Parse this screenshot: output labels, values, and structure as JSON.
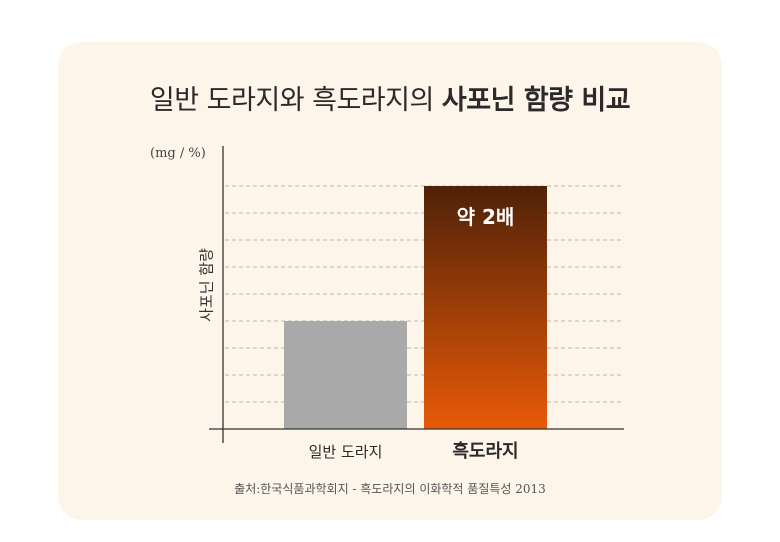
{
  "title": {
    "light": "일반 도라지와 흑도라지의 ",
    "bold": "사포닌 함량 비교"
  },
  "chart_data": {
    "type": "bar",
    "categories": [
      "일반 도라지",
      "흑도라지"
    ],
    "values": [
      4,
      9
    ],
    "ylim": [
      0,
      9
    ],
    "ylabel": "사포닌 함량",
    "unit": "(mg / %)",
    "grid": true,
    "annotation": "약 2배",
    "colors": {
      "normal": "#a9a9a9",
      "black_top": "#4f2108",
      "black_bottom": "#e85a07",
      "grid": "#bdb8b0",
      "axis": "#333333"
    }
  },
  "source": "출처:한국식품과학회지 - 흑도라지의 이화학적 품질특성 2013"
}
